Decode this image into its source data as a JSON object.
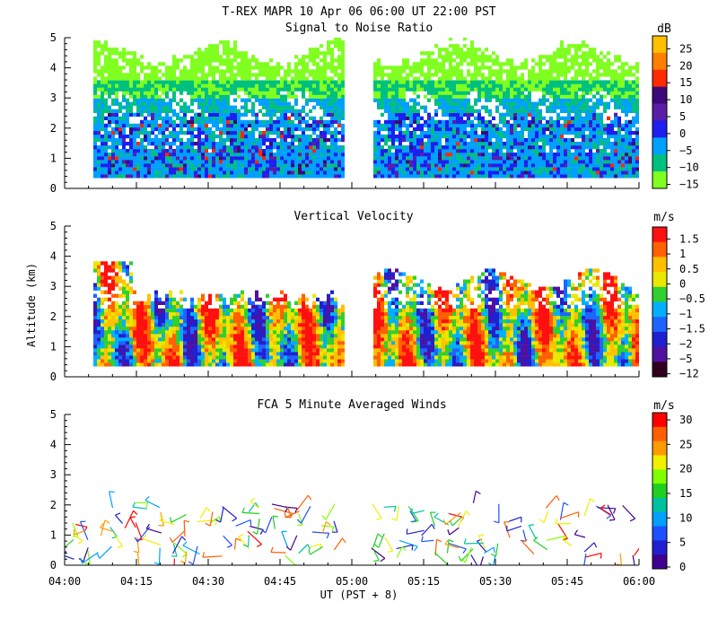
{
  "header": {
    "title": "T-REX  MAPR 10 Apr 06  06:00 UT  22:00  PST"
  },
  "chart_data": [
    {
      "type": "heatmap",
      "title": "Signal to Noise Ratio",
      "ylabel": "",
      "ylim": [
        0,
        5
      ],
      "yticks": [
        "0",
        "1",
        "2",
        "3",
        "4",
        "5"
      ],
      "xlim": [
        "04:00",
        "06:00"
      ],
      "data_gap": [
        "05:00",
        "05:05"
      ],
      "colorbar": {
        "unit": "dB",
        "labels": [
          "25",
          "20",
          "15",
          "10",
          "5",
          "0",
          "−5",
          "−10",
          "−15"
        ],
        "colors": [
          "#ffc000",
          "#ff8000",
          "#ff2a00",
          "#3c0a78",
          "#5a1ea8",
          "#1e1ef0",
          "#00a0ff",
          "#00c080",
          "#80ff20"
        ]
      },
      "layers": [
        {
          "range": "0.4-2.6 km",
          "dominant": "-5 to 5 dB (blue/cyan)"
        },
        {
          "range": "2.6-3.6 km",
          "dominant": "-10 dB (green)"
        },
        {
          "range": "3.6-4.8 km",
          "dominant": "-15 dB (light green)"
        }
      ]
    },
    {
      "type": "heatmap",
      "title": "Vertical Velocity",
      "ylabel": "Altitude (km)",
      "ylim": [
        0,
        5
      ],
      "yticks": [
        "0",
        "1",
        "2",
        "3",
        "4",
        "5"
      ],
      "xlim": [
        "04:00",
        "06:00"
      ],
      "colorbar": {
        "unit": "m/s",
        "labels": [
          "1.5",
          "1",
          "0.5",
          "0",
          "−0.5",
          "−1",
          "−1.5",
          "−2",
          "−5",
          "−12"
        ],
        "colors": [
          "#ff1010",
          "#ff6000",
          "#ffc000",
          "#e8e800",
          "#30d030",
          "#00b0ff",
          "#1e64ff",
          "#2020d0",
          "#5010a0",
          "#300020"
        ]
      }
    },
    {
      "type": "scatter",
      "title": "FCA 5 Minute Averaged Winds",
      "ylim": [
        0,
        5
      ],
      "yticks": [
        "0",
        "1",
        "2",
        "3",
        "4",
        "5"
      ],
      "xlim": [
        "04:00",
        "06:00"
      ],
      "colorbar": {
        "unit": "m/s",
        "labels": [
          "30",
          "25",
          "20",
          "15",
          "10",
          "5",
          "0"
        ],
        "colors": [
          "#ff0000",
          "#ff6000",
          "#ff9a00",
          "#f0f000",
          "#80ff00",
          "#20d020",
          "#00c0a0",
          "#00a0ff",
          "#1e50ff",
          "#2020d0",
          "#400090"
        ]
      }
    }
  ],
  "xaxis": {
    "ticks": [
      "04:00",
      "04:15",
      "04:30",
      "04:45",
      "05:00",
      "05:15",
      "05:30",
      "05:45",
      "06:00"
    ],
    "label": "UT  (PST + 8)"
  }
}
